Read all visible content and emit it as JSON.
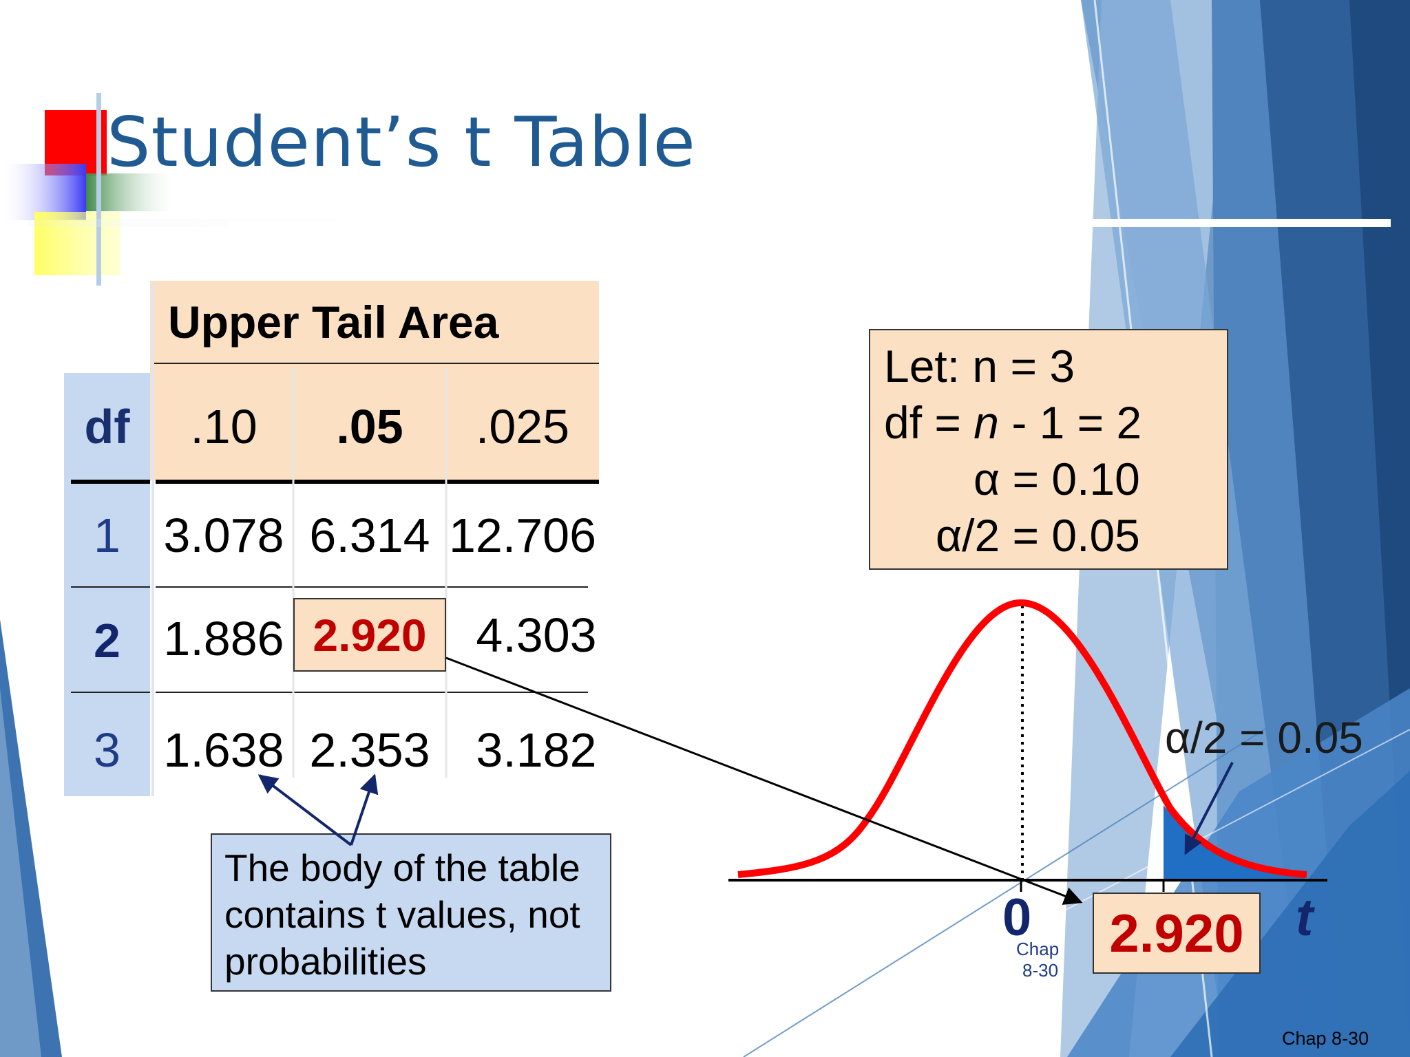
{
  "slide": {
    "title": "Student’s t Table",
    "footer": "Chap 8-30"
  },
  "table": {
    "header_label": "Upper Tail Area",
    "df_label": "df",
    "columns": [
      ".10",
      ".05",
      ".025"
    ],
    "rows": [
      {
        "df": "1",
        "values": [
          "3.078",
          "6.314",
          "12.706"
        ]
      },
      {
        "df": "2",
        "values": [
          "1.886",
          "2.920",
          "4.303"
        ]
      },
      {
        "df": "3",
        "values": [
          "1.638",
          "2.353",
          "3.182"
        ]
      }
    ]
  },
  "note": {
    "lines": [
      "The body of the table",
      "contains t values, not",
      "probabilities"
    ]
  },
  "let_box": {
    "line1": "Let: n = 3",
    "line2_prefix": "df = ",
    "line2_var": "n",
    "line2_suffix": " - 1 = 2",
    "line3": "α = 0.10",
    "line4": "α/2 = 0.05"
  },
  "graph": {
    "alpha_label": "α/2 = 0.05",
    "zero_label": "0",
    "t_label": "t",
    "result_value": "2.920",
    "chap_line1": "Chap",
    "chap_line2": "8-30"
  },
  "colors": {
    "title": "#1f5a93",
    "header_fill": "#fbe0c3",
    "df_fill": "#c6d9f1",
    "highlight_value": "#c00000",
    "curve": "#ff0000",
    "tail_shade": "#1f6fc5"
  }
}
